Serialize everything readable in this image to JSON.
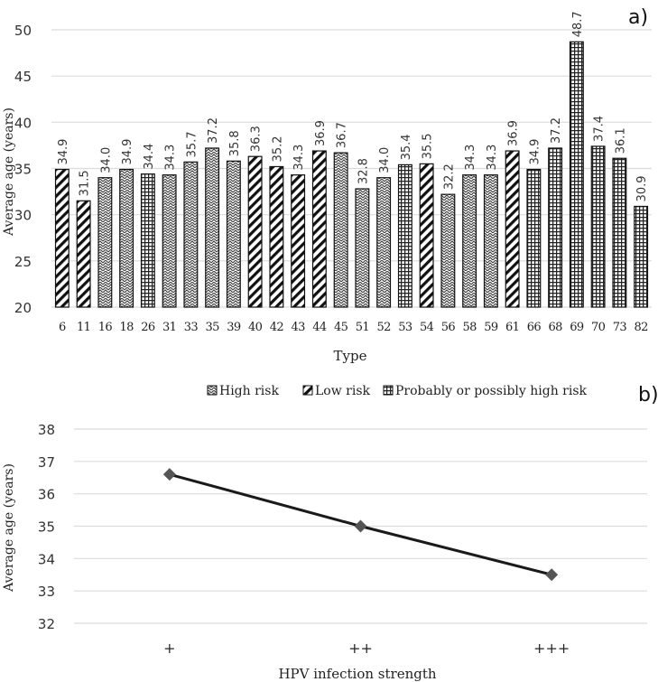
{
  "chart_data": [
    {
      "panel_label": "a)",
      "type": "bar",
      "title": "",
      "xlabel": "Type",
      "ylabel": "Average age (years)",
      "ylim": [
        20,
        50
      ],
      "yticks": [
        20,
        25,
        30,
        35,
        40,
        45,
        50
      ],
      "grid": true,
      "legend_position": "bottom",
      "legend": [
        {
          "key": "high",
          "label": "High risk"
        },
        {
          "key": "low",
          "label": "Low risk"
        },
        {
          "key": "probable",
          "label": "Probably or possibly high risk"
        }
      ],
      "categories": [
        "6",
        "11",
        "16",
        "18",
        "26",
        "31",
        "33",
        "35",
        "39",
        "40",
        "42",
        "43",
        "44",
        "45",
        "51",
        "52",
        "53",
        "54",
        "56",
        "58",
        "59",
        "61",
        "66",
        "68",
        "69",
        "70",
        "73",
        "82"
      ],
      "values": [
        34.9,
        31.5,
        34.0,
        34.9,
        34.4,
        34.3,
        35.7,
        37.2,
        35.8,
        36.3,
        35.2,
        34.3,
        36.9,
        36.7,
        32.8,
        34.0,
        35.4,
        35.5,
        32.2,
        34.3,
        34.3,
        36.9,
        34.9,
        37.2,
        48.7,
        37.4,
        36.1,
        30.9
      ],
      "value_labels": [
        "34.9",
        "31.5",
        "34.0",
        "34.9",
        "34.4",
        "34.3",
        "35.7",
        "37.2",
        "35.8",
        "36.3",
        "35.2",
        "34.3",
        "36.9",
        "36.7",
        "32.8",
        "34.0",
        "35.4",
        "35.5",
        "32.2",
        "34.3",
        "34.3",
        "36.9",
        "34.9",
        "37.2",
        "48.7",
        "37.4",
        "36.1",
        "30.9"
      ],
      "risk_group": [
        "low",
        "low",
        "high",
        "high",
        "probable",
        "high",
        "high",
        "high",
        "high",
        "low",
        "low",
        "low",
        "low",
        "high",
        "high",
        "high",
        "probable",
        "low",
        "high",
        "high",
        "high",
        "low",
        "probable",
        "probable",
        "probable",
        "probable",
        "probable",
        "probable"
      ]
    },
    {
      "panel_label": "b)",
      "type": "line",
      "title": "",
      "xlabel": "HPV infection strength",
      "ylabel": "Average age (years)",
      "ylim": [
        32,
        38
      ],
      "yticks": [
        32,
        33,
        34,
        35,
        36,
        37,
        38
      ],
      "grid": true,
      "x": [
        "+",
        "++",
        "+++"
      ],
      "series": [
        {
          "name": "Average age",
          "values": [
            36.6,
            35.0,
            33.5
          ],
          "marker": "diamond"
        }
      ]
    }
  ]
}
